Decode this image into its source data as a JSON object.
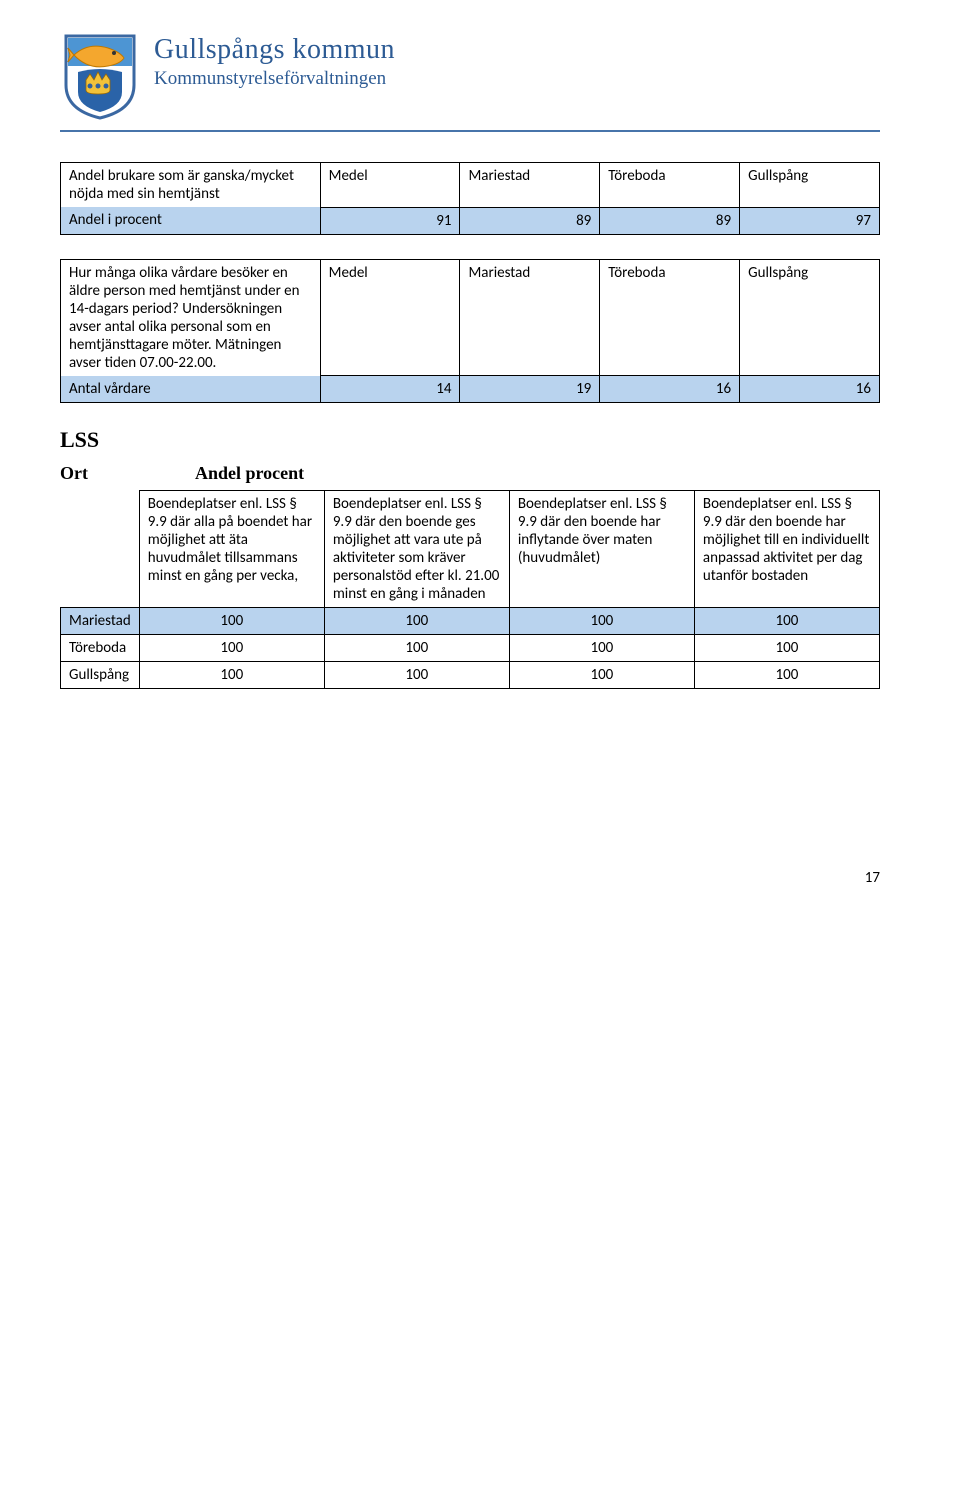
{
  "header": {
    "org_name": "Gullspångs kommun",
    "org_sub": "Kommunstyrelseförvaltningen"
  },
  "crest": {
    "shield_bg": "#ffffff",
    "shield_border": "#3b68a2",
    "top_band": "#4d95d3",
    "fish_body": "#f4a72e",
    "fish_stroke": "#c07800",
    "crown_bg": "#2a63a8",
    "crown_fill": "#f2c23a"
  },
  "colors": {
    "rule": "#4774aa",
    "highlight": "#b9d3ee",
    "text": "#000000",
    "heading": "#2d5b94"
  },
  "table1": {
    "desc": "Andel brukare som är ganska/mycket nöjda med sin hemtjänst",
    "headers": [
      "Medel",
      "Mariestad",
      "Töreboda",
      "Gullspång"
    ],
    "row_label": "Andel i procent",
    "values": [
      "91",
      "89",
      "89",
      "97"
    ]
  },
  "table2": {
    "desc": "Hur många olika vårdare besöker en äldre person med hemtjänst under en 14-dagars period? Undersökningen avser antal olika personal som en hemtjänsttagare möter. Mätningen avser tiden 07.00-22.00.",
    "headers": [
      "Medel",
      "Mariestad",
      "Töreboda",
      "Gullspång"
    ],
    "row_label": "Antal vårdare",
    "values": [
      "14",
      "19",
      "16",
      "16"
    ]
  },
  "lss": {
    "heading": "LSS",
    "ort_label": "Ort",
    "andel_label": "Andel procent",
    "col_headers": [
      "Boendeplatser enl. LSS § 9.9 där\nalla på boendet har möjlighet att äta huvudmålet tillsammans minst en gång per vecka,",
      "Boendeplatser enl. LSS § 9.9 där den boende ges möjlighet att vara ute på aktiviteter som kräver personalstöd efter kl. 21.00 minst en gång i månaden",
      "Boendeplatser enl. LSS § 9.9 där den\nboende har inflytande över maten (huvudmålet)",
      "Boendeplatser enl. LSS § 9.9 där den boende har möjlighet till en individuellt anpassad aktivitet per dag utanför bostaden"
    ],
    "rows": [
      {
        "ort": "Mariestad",
        "vals": [
          "100",
          "100",
          "100",
          "100"
        ],
        "hl": true
      },
      {
        "ort": "Töreboda",
        "vals": [
          "100",
          "100",
          "100",
          "100"
        ],
        "hl": false
      },
      {
        "ort": "Gullspång",
        "vals": [
          "100",
          "100",
          "100",
          "100"
        ],
        "hl": false
      }
    ]
  },
  "page_number": "17"
}
